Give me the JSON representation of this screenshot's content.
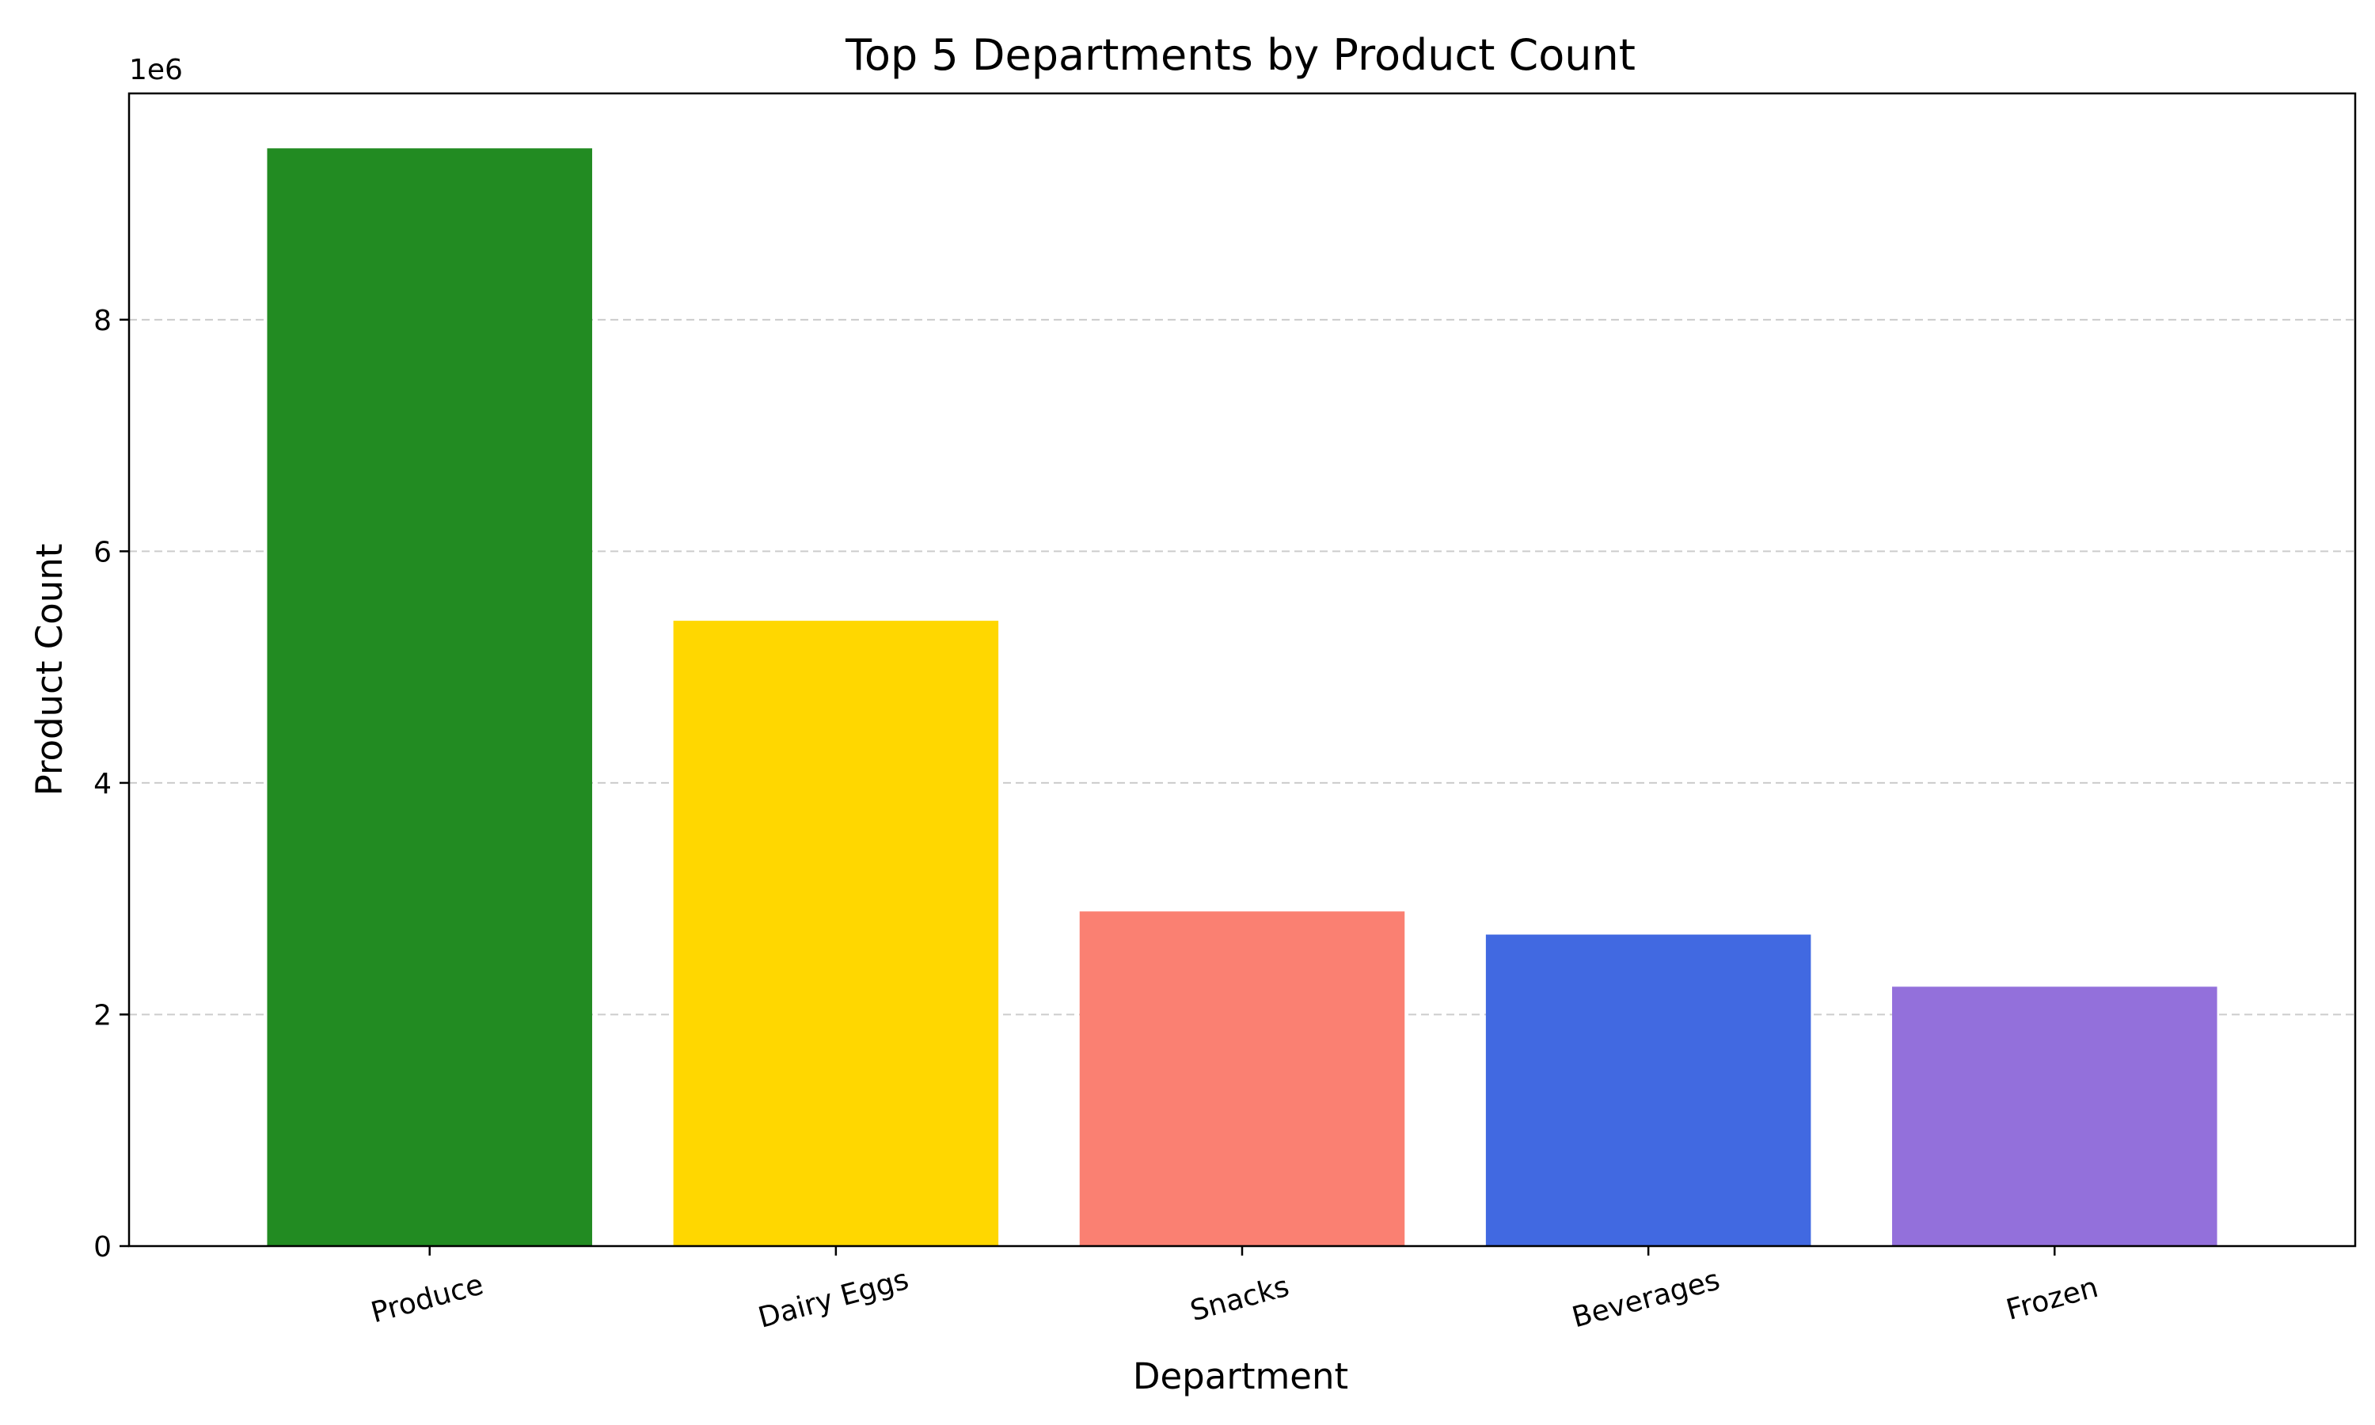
{
  "chart_data": {
    "type": "bar",
    "title": "Top 5 Departments by Product Count",
    "xlabel": "Department",
    "ylabel": "Product Count",
    "y_offset_label": "1e6",
    "categories": [
      "Produce",
      "Dairy Eggs",
      "Snacks",
      "Beverages",
      "Frozen"
    ],
    "values": [
      9480000,
      5400000,
      2890000,
      2690000,
      2240000
    ],
    "colors": [
      "#228B22",
      "#FFD700",
      "#FA8072",
      "#4169E1",
      "#9370DB"
    ],
    "yticks": [
      0,
      2000000,
      4000000,
      6000000,
      8000000
    ],
    "ytick_labels": [
      "0",
      "2",
      "4",
      "6",
      "8"
    ],
    "ylim": [
      0,
      9954000
    ],
    "grid": "y-dashed",
    "legend": "none"
  }
}
